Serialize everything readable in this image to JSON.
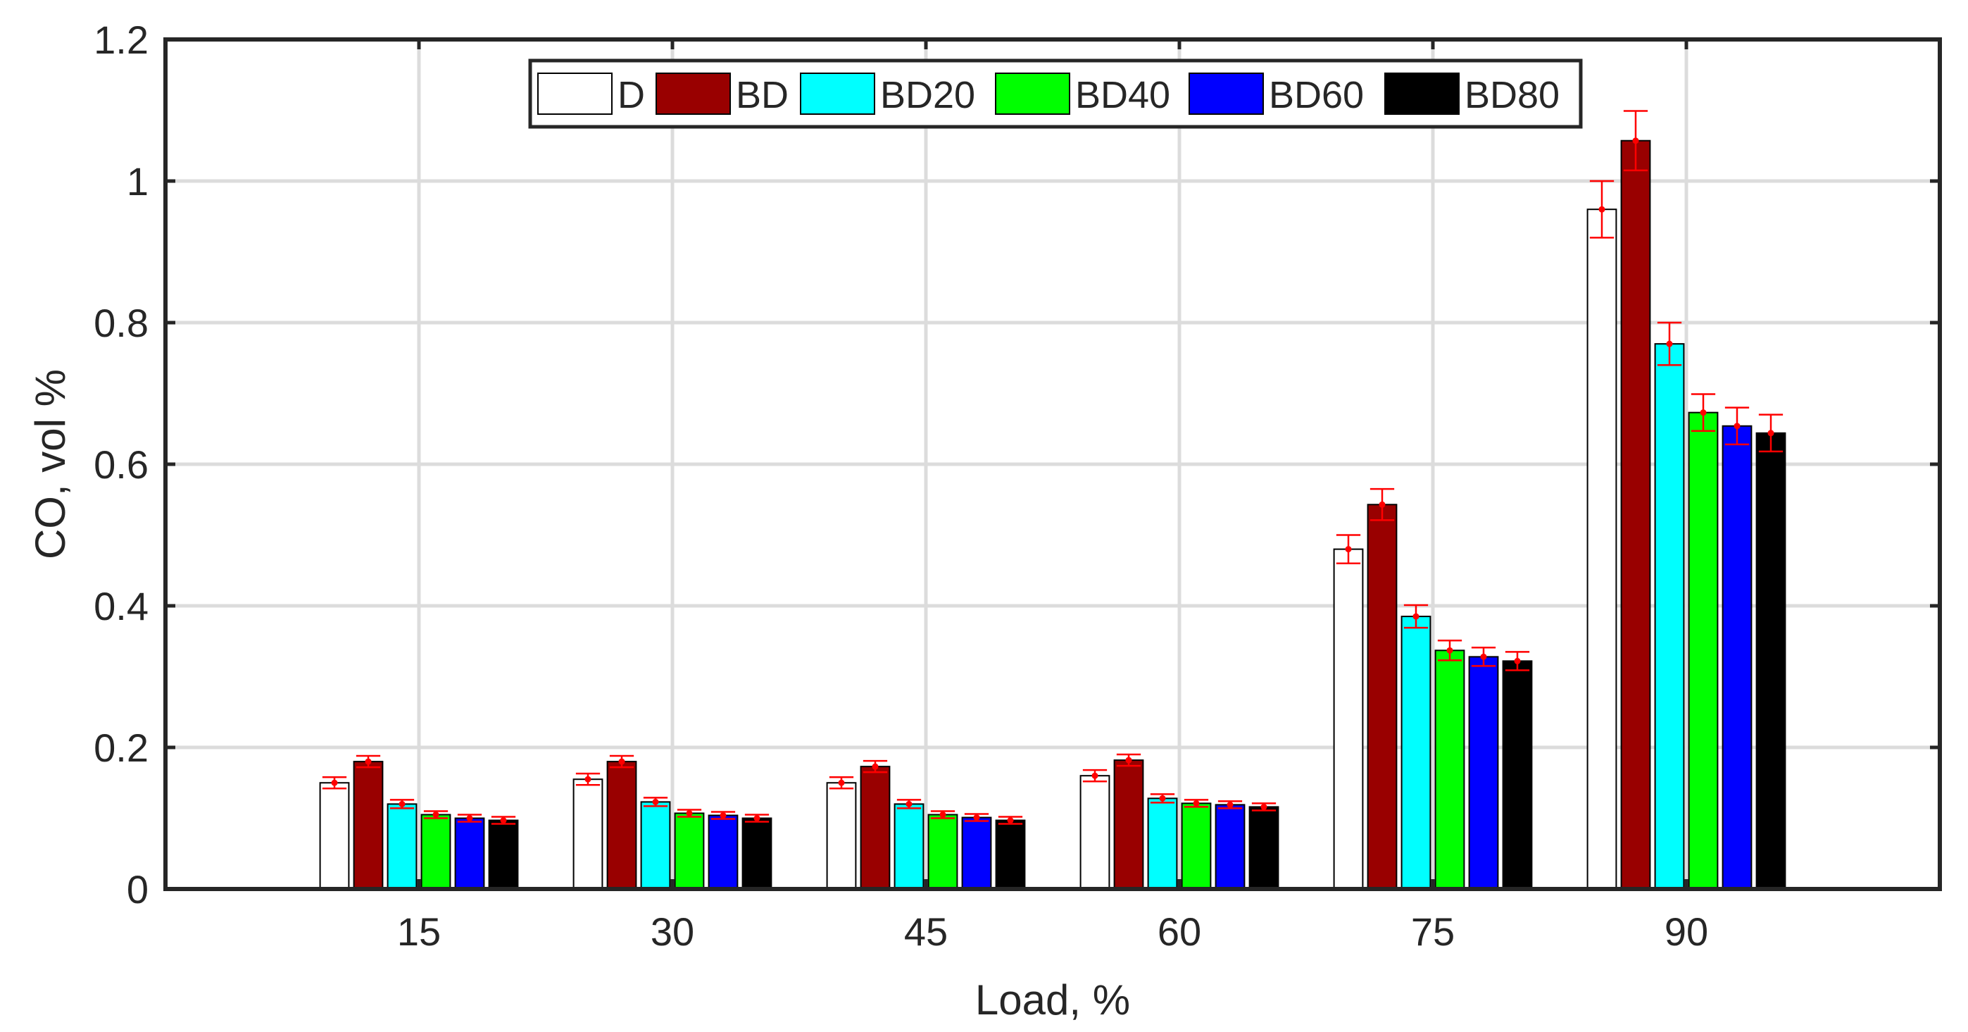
{
  "chart_data": {
    "type": "bar",
    "xlabel": "Load, %",
    "ylabel": "CO, vol %",
    "categories": [
      "15",
      "30",
      "45",
      "60",
      "75",
      "90"
    ],
    "ylim": [
      0,
      1.2
    ],
    "yticks": [
      "0",
      "0.2",
      "0.4",
      "0.6",
      "0.8",
      "1",
      "1.2"
    ],
    "xlim": [
      0,
      7
    ],
    "grid": true,
    "legend": {
      "position": "top-center",
      "orientation": "horizontal"
    },
    "error_bar_color": "#ff0000",
    "series": [
      {
        "name": "D",
        "color": "#ffffff",
        "values": [
          0.15,
          0.155,
          0.15,
          0.16,
          0.48,
          0.96
        ],
        "errors": [
          0.008,
          0.008,
          0.008,
          0.008,
          0.02,
          0.04
        ]
      },
      {
        "name": "BD",
        "color": "#990000",
        "values": [
          0.18,
          0.18,
          0.173,
          0.182,
          0.543,
          1.057
        ],
        "errors": [
          0.008,
          0.008,
          0.008,
          0.008,
          0.022,
          0.042
        ]
      },
      {
        "name": "BD20",
        "color": "#00ffff",
        "values": [
          0.12,
          0.123,
          0.12,
          0.128,
          0.385,
          0.77
        ],
        "errors": [
          0.006,
          0.006,
          0.006,
          0.006,
          0.016,
          0.03
        ]
      },
      {
        "name": "BD40",
        "color": "#00ff00",
        "values": [
          0.105,
          0.107,
          0.105,
          0.121,
          0.337,
          0.673
        ],
        "errors": [
          0.005,
          0.005,
          0.005,
          0.005,
          0.014,
          0.026
        ]
      },
      {
        "name": "BD60",
        "color": "#0000ff",
        "values": [
          0.1,
          0.104,
          0.101,
          0.119,
          0.328,
          0.654
        ],
        "errors": [
          0.005,
          0.005,
          0.005,
          0.005,
          0.013,
          0.026
        ]
      },
      {
        "name": "BD80",
        "color": "#000000",
        "values": [
          0.097,
          0.1,
          0.097,
          0.116,
          0.322,
          0.644
        ],
        "errors": [
          0.005,
          0.005,
          0.005,
          0.005,
          0.013,
          0.026
        ]
      }
    ]
  }
}
